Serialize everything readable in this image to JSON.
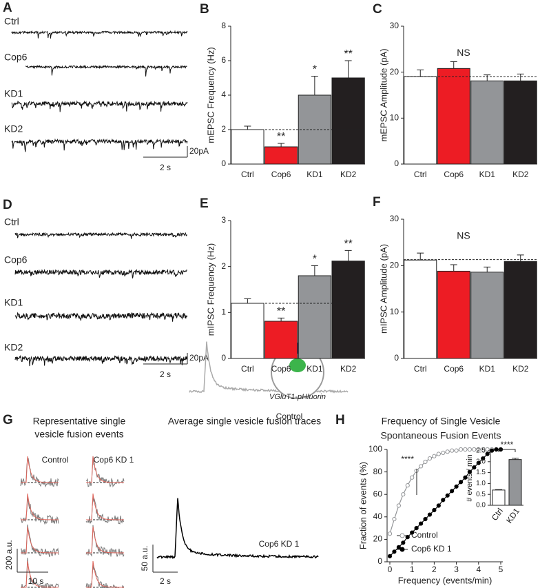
{
  "panels": {
    "A": {
      "label": "A",
      "traces": [
        "Ctrl",
        "Cop6",
        "KD1",
        "KD2"
      ],
      "scale_y": "20pA",
      "scale_x": "2 s"
    },
    "D": {
      "label": "D",
      "traces": [
        "Ctrl",
        "Cop6",
        "KD1",
        "KD2"
      ],
      "scale_y": "20pA",
      "scale_x": "2 s"
    },
    "G": {
      "label": "G",
      "left_title": [
        "Representative single",
        "vesicle fusion events"
      ],
      "left_columns": [
        "Control",
        "Cop6 KD 1"
      ],
      "left_scale_y": "200 a.u.",
      "left_scale_x": "10 s",
      "right_title": "Average single vesicle fusion traces",
      "construct": "VGluT1-pHluorin",
      "right_traces": [
        "Control",
        "Cop6 KD 1"
      ],
      "right_scale_y": "50 a.u.",
      "right_scale_x": "2 s"
    }
  },
  "chart_data": [
    {
      "label": "B",
      "type": "bar",
      "ylabel": "mEPSC Frequency (Hz)",
      "categories": [
        "Ctrl",
        "Cop6",
        "KD1",
        "KD2"
      ],
      "values": [
        2,
        1,
        4,
        5
      ],
      "errors": [
        0.2,
        0.2,
        1.1,
        1.0
      ],
      "colors": [
        "#ffffff",
        "#ed1c24",
        "#939598",
        "#231f20"
      ],
      "ylim": [
        0,
        8
      ],
      "yticks": [
        0,
        2,
        4,
        6,
        8
      ],
      "significance": [
        null,
        "**",
        "*",
        "**"
      ],
      "reference": 2
    },
    {
      "label": "C",
      "type": "bar",
      "ylabel": "mEPSC Amplitude (pA)",
      "categories": [
        "Ctrl",
        "Cop6",
        "KD1",
        "KD2"
      ],
      "values": [
        19,
        20.8,
        18.1,
        18.1
      ],
      "errors": [
        1.5,
        1.5,
        1.3,
        1.5
      ],
      "colors": [
        "#ffffff",
        "#ed1c24",
        "#939598",
        "#231f20"
      ],
      "ylim": [
        0,
        30
      ],
      "yticks": [
        0,
        10,
        20,
        30
      ],
      "annotation": "NS",
      "reference": 19
    },
    {
      "label": "E",
      "type": "bar",
      "ylabel": "mIPSC Frequency (Hz)",
      "categories": [
        "Ctrl",
        "Cop6",
        "KD1",
        "KD2"
      ],
      "values": [
        1.2,
        0.81,
        1.8,
        2.12
      ],
      "errors": [
        0.1,
        0.07,
        0.22,
        0.23
      ],
      "colors": [
        "#ffffff",
        "#ed1c24",
        "#939598",
        "#231f20"
      ],
      "ylim": [
        0,
        3
      ],
      "yticks": [
        0,
        1,
        2,
        3
      ],
      "significance": [
        null,
        "**",
        "*",
        "**"
      ],
      "reference": 1.2
    },
    {
      "label": "F",
      "type": "bar",
      "ylabel": "mIPSC Amplitude (pA)",
      "categories": [
        "Ctrl",
        "Cop6",
        "KD1",
        "KD2"
      ],
      "values": [
        21.2,
        18.8,
        18.6,
        20.9
      ],
      "errors": [
        1.5,
        1.4,
        1.1,
        1.4
      ],
      "colors": [
        "#ffffff",
        "#ed1c24",
        "#939598",
        "#231f20"
      ],
      "ylim": [
        0,
        30
      ],
      "yticks": [
        0,
        10,
        20,
        30
      ],
      "annotation": "NS",
      "reference": 21.3
    },
    {
      "label": "H",
      "type": "line",
      "title": [
        "Frequency of Single Vesicle",
        "Spontaneous Fusion Events"
      ],
      "xlabel": "Frequency (events/min)",
      "ylabel": "Fraction of events (%)",
      "x": [
        0,
        0.2,
        0.4,
        0.6,
        0.8,
        1,
        1.2,
        1.4,
        1.6,
        1.8,
        2,
        2.2,
        2.4,
        2.6,
        2.8,
        3,
        3.2,
        3.4,
        3.6,
        3.8,
        4,
        4.2,
        4.4,
        4.6,
        4.8,
        5
      ],
      "series": [
        {
          "name": "Control",
          "color": "#939598",
          "marker": "open",
          "values": [
            25,
            38,
            50,
            60,
            68,
            75,
            81,
            85,
            89,
            92,
            94,
            96,
            97,
            98,
            99,
            99,
            100,
            100,
            100,
            100,
            100,
            100,
            100,
            100,
            100,
            100
          ]
        },
        {
          "name": "Cop6 KD 1",
          "color": "#000000",
          "marker": "filled",
          "values": [
            5,
            9,
            13,
            17,
            22,
            26,
            30,
            34,
            38,
            42,
            46,
            50,
            55,
            59,
            63,
            67,
            71,
            75,
            80,
            84,
            88,
            92,
            96,
            99,
            100,
            100
          ]
        }
      ],
      "xlim": [
        0,
        5
      ],
      "ylim": [
        0,
        100
      ],
      "xticks": [
        0,
        1,
        2,
        3,
        4,
        5
      ],
      "yticks": [
        0,
        20,
        40,
        60,
        80,
        100
      ],
      "annotation": "****"
    },
    {
      "type": "bar",
      "ylabel": "# events / min",
      "categories": [
        "Ctrl",
        "KD1"
      ],
      "values": [
        0.7,
        2.1
      ],
      "errors": [
        0.02,
        0.06
      ],
      "colors": [
        "#ffffff",
        "#939598"
      ],
      "ylim": [
        0,
        2.5
      ],
      "yticks": [
        {
          "value": 0,
          "label": "0.0"
        },
        0.5,
        {
          "value": 1,
          "label": "1.0"
        },
        1.5,
        {
          "value": 2,
          "label": "2.0"
        },
        2.5
      ],
      "significance_pair": "****"
    }
  ]
}
